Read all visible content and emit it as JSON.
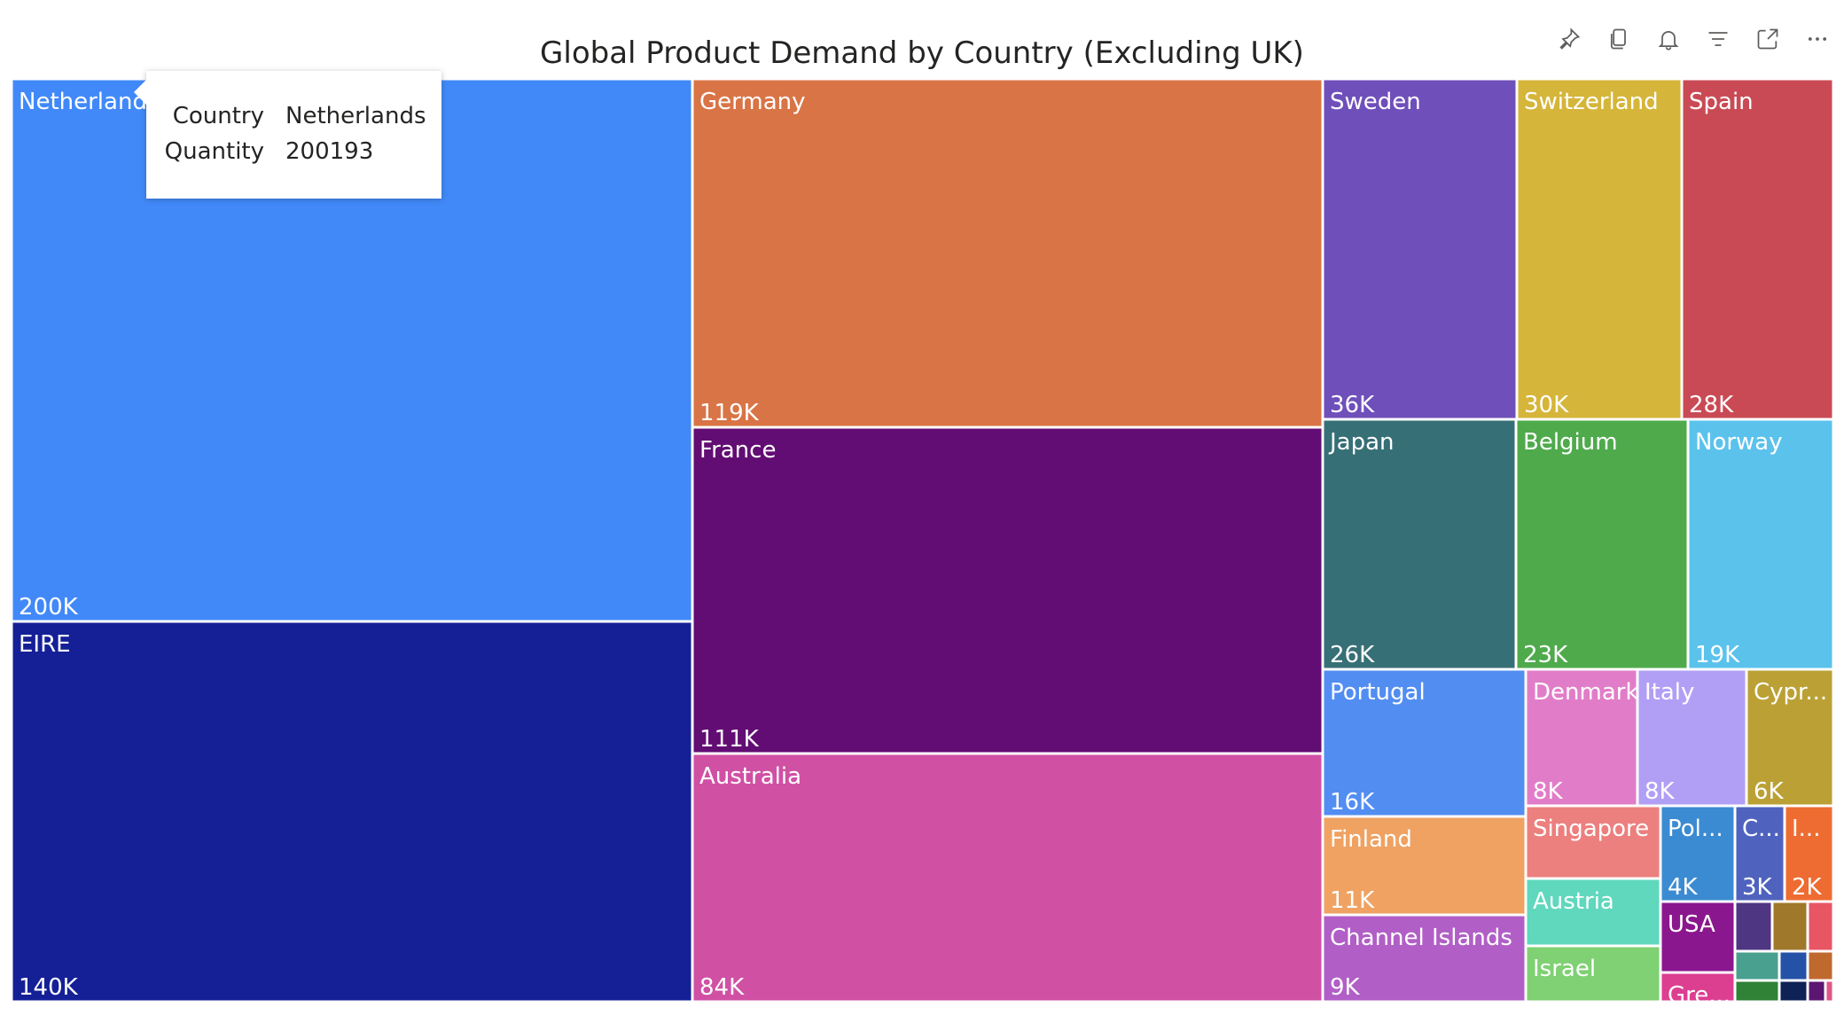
{
  "toolbar": {
    "icons": [
      "pin-icon",
      "copy-icon",
      "bell-icon",
      "filter-icon",
      "focus-mode-icon",
      "more-options-icon"
    ]
  },
  "chart_data": {
    "type": "treemap",
    "title": "Global Product Demand by Country (Excluding UK)",
    "items": [
      {
        "name": "Netherlands",
        "label": "Netherlands",
        "value_label": "200K",
        "value": 200193,
        "color": "#4189F8"
      },
      {
        "name": "EIRE",
        "label": "EIRE",
        "value_label": "140K",
        "value": 140000,
        "color": "#152097"
      },
      {
        "name": "Germany",
        "label": "Germany",
        "value_label": "119K",
        "value": 119000,
        "color": "#D97446"
      },
      {
        "name": "France",
        "label": "France",
        "value_label": "111K",
        "value": 111000,
        "color": "#620D73"
      },
      {
        "name": "Australia",
        "label": "Australia",
        "value_label": "84K",
        "value": 84000,
        "color": "#D050A4"
      },
      {
        "name": "Sweden",
        "label": "Sweden",
        "value_label": "36K",
        "value": 36000,
        "color": "#6F4FBA"
      },
      {
        "name": "Switzerland",
        "label": "Switzerland",
        "value_label": "30K",
        "value": 30000,
        "color": "#D5B53A"
      },
      {
        "name": "Spain",
        "label": "Spain",
        "value_label": "28K",
        "value": 28000,
        "color": "#C94A55"
      },
      {
        "name": "Japan",
        "label": "Japan",
        "value_label": "26K",
        "value": 26000,
        "color": "#376F76"
      },
      {
        "name": "Belgium",
        "label": "Belgium",
        "value_label": "23K",
        "value": 23000,
        "color": "#4FAA4C"
      },
      {
        "name": "Norway",
        "label": "Norway",
        "value_label": "19K",
        "value": 19000,
        "color": "#5BC2EC"
      },
      {
        "name": "Portugal",
        "label": "Portugal",
        "value_label": "16K",
        "value": 16000,
        "color": "#528DF2"
      },
      {
        "name": "Finland",
        "label": "Finland",
        "value_label": "11K",
        "value": 11000,
        "color": "#EFA262"
      },
      {
        "name": "Channel Islands",
        "label": "Channel Islands",
        "value_label": "9K",
        "value": 9000,
        "color": "#B15FC6"
      },
      {
        "name": "Denmark",
        "label": "Denmark",
        "value_label": "8K",
        "value": 8000,
        "color": "#E17DC8"
      },
      {
        "name": "Italy",
        "label": "Italy",
        "value_label": "8K",
        "value": 8000,
        "color": "#B19FF5"
      },
      {
        "name": "Cyprus",
        "label": "Cypr...",
        "value_label": "6K",
        "value": 6000,
        "color": "#BBA135"
      },
      {
        "name": "Singapore",
        "label": "Singapore",
        "value_label": "",
        "value": null,
        "color": "#EC807F"
      },
      {
        "name": "Austria",
        "label": "Austria",
        "value_label": "",
        "value": null,
        "color": "#5FD8BD"
      },
      {
        "name": "Israel",
        "label": "Israel",
        "value_label": "",
        "value": null,
        "color": "#7FD173"
      },
      {
        "name": "Poland",
        "label": "Pol...",
        "value_label": "4K",
        "value": 4000,
        "color": "#3B8BD2"
      },
      {
        "name": "C...",
        "label": "C...",
        "value_label": "3K",
        "value": 3000,
        "color": "#4F63BE"
      },
      {
        "name": "I...",
        "label": "I...",
        "value_label": "2K",
        "value": 2000,
        "color": "#EE6C32"
      },
      {
        "name": "USA",
        "label": "USA",
        "value_label": "",
        "value": null,
        "color": "#8B178E"
      },
      {
        "name": "Greece",
        "label": "Gre...",
        "value_label": "",
        "value": null,
        "color": "#DC3E90"
      },
      {
        "name": "small-1",
        "label": "",
        "value_label": "",
        "value": null,
        "color": "#4F3682"
      },
      {
        "name": "small-2",
        "label": "",
        "value_label": "",
        "value": null,
        "color": "#9F782B"
      },
      {
        "name": "small-3",
        "label": "",
        "value_label": "",
        "value": null,
        "color": "#E85664"
      },
      {
        "name": "small-4",
        "label": "",
        "value_label": "",
        "value": null,
        "color": "#4AA08E"
      },
      {
        "name": "small-5",
        "label": "",
        "value_label": "",
        "value": null,
        "color": "#2452A6"
      },
      {
        "name": "small-6",
        "label": "",
        "value_label": "",
        "value": null,
        "color": "#C0692F"
      },
      {
        "name": "small-7",
        "label": "",
        "value_label": "",
        "value": null,
        "color": "#2F8236"
      },
      {
        "name": "small-8",
        "label": "",
        "value_label": "",
        "value": null,
        "color": "#0F2256"
      },
      {
        "name": "small-9",
        "label": "",
        "value_label": "",
        "value": null,
        "color": "#5A1670"
      },
      {
        "name": "small-10",
        "label": "",
        "value_label": "",
        "value": null,
        "color": "#E15584"
      }
    ]
  },
  "tooltip": {
    "country_key": "Country",
    "country_value": "Netherlands",
    "quantity_key": "Quantity",
    "quantity_value": "200193"
  }
}
